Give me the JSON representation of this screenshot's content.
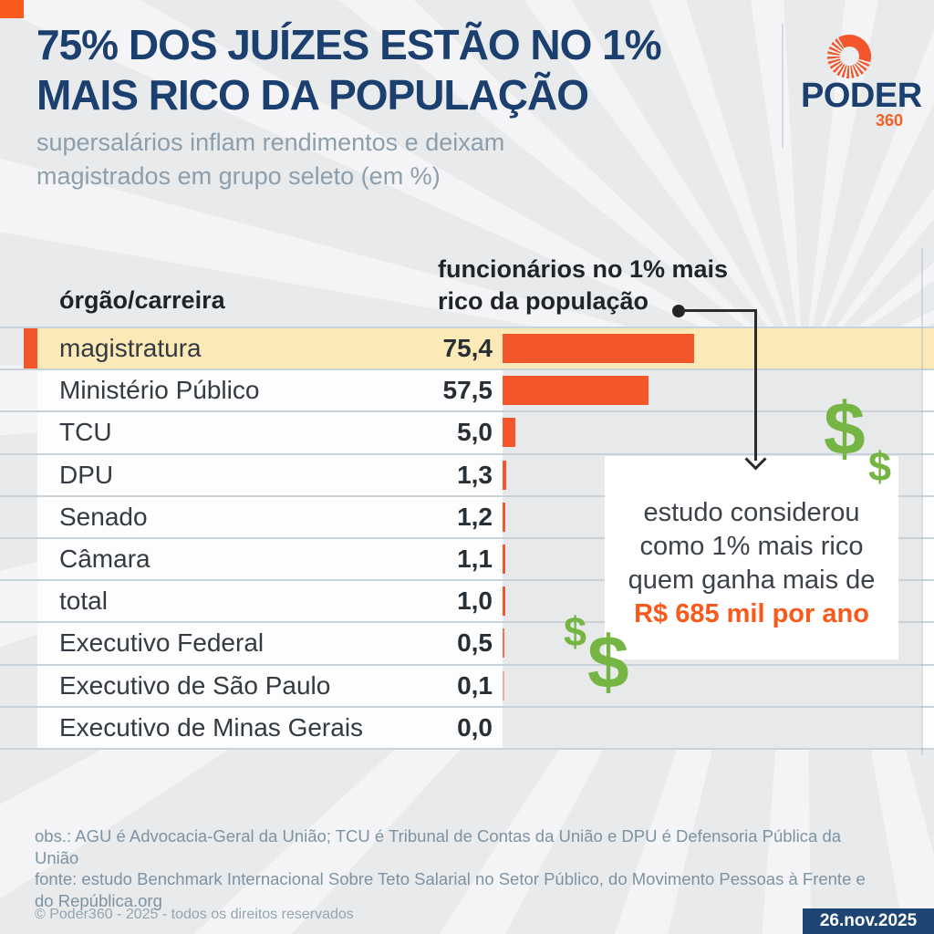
{
  "header": {
    "title_line1": "75% DOS JUÍZES ESTÃO NO 1%",
    "title_line2": "MAIS RICO DA POPULAÇÃO",
    "subtitle_line1": "supersalários inflam rendimentos e deixam",
    "subtitle_line2": "magistrados em grupo seleto (em %)",
    "accent_color": "#f85a1c",
    "title_color": "#1b3f6e"
  },
  "logo": {
    "brand": "PODER",
    "suffix": "360",
    "icon": "sunburst-icon",
    "icon_color": "#f2562a"
  },
  "chart_data": {
    "type": "bar",
    "orientation": "horizontal",
    "title": "75% dos juízes estão no 1% mais rico da população",
    "unit": "%",
    "col_header_left": "órgão/carreira",
    "col_header_right_line1": "funcionários no 1% mais",
    "col_header_right_line2": "rico da população",
    "categories": [
      "magistratura",
      "Ministério Público",
      "TCU",
      "DPU",
      "Senado",
      "Câmara",
      "total",
      "Executivo Federal",
      "Executivo de São Paulo",
      "Executivo de Minas Gerais"
    ],
    "values": [
      75.4,
      57.5,
      5.0,
      1.3,
      1.2,
      1.1,
      1.0,
      0.5,
      0.1,
      0.0
    ],
    "value_labels": [
      "75,4",
      "57,5",
      "5,0",
      "1,3",
      "1,2",
      "1,1",
      "1,0",
      "0,5",
      "0,1",
      "0,0"
    ],
    "highlighted_category": "magistratura",
    "bar_color": "#f2562a",
    "highlight_row_color": "#fbe9b7",
    "xlim": [
      0,
      164
    ],
    "grid": false,
    "legend": false
  },
  "annotation": {
    "line1": "estudo considerou",
    "line2": "como 1% mais rico",
    "line3": "quem ganha mais de",
    "line4": "R$ 685 mil por ano",
    "highlight_color": "#f85a1c"
  },
  "decorations": {
    "dollar_glyph": "$",
    "dollar_color": "#74b544"
  },
  "footer": {
    "obs_line1": "obs.: AGU é Advocacia-Geral da União; TCU é Tribunal de Contas da União e DPU é Defensoria Pública da",
    "obs_line2": "União",
    "fonte_line1": "fonte: estudo Benchmark Internacional Sobre Teto Salarial no Setor Público, do Movimento Pessoas à Frente e",
    "fonte_line2": "do República.org",
    "copyright": "© Poder360 - 2025 - todos os direitos reservados",
    "date": "26.nov.2025"
  }
}
